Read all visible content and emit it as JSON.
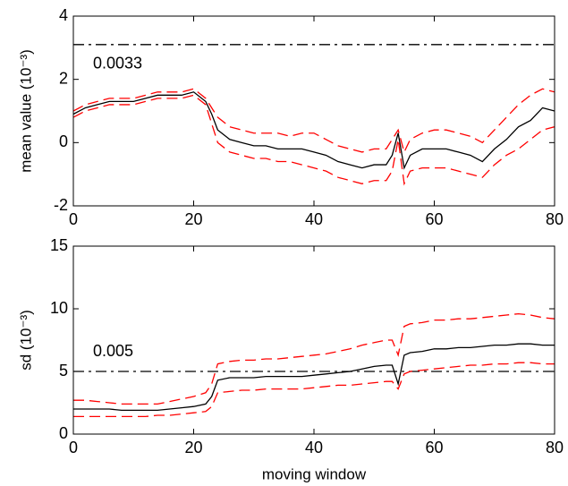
{
  "chart_data": [
    {
      "type": "line",
      "ylabel": "mean value (10⁻³)",
      "annotation": "0.0033",
      "hline": 3.1,
      "x": [
        0,
        2,
        4,
        6,
        8,
        10,
        12,
        14,
        16,
        18,
        20,
        22,
        23,
        24,
        26,
        28,
        30,
        32,
        34,
        36,
        38,
        40,
        42,
        44,
        46,
        48,
        50,
        52,
        53,
        54,
        55,
        56,
        58,
        60,
        62,
        64,
        66,
        68,
        70,
        72,
        74,
        76,
        78,
        80
      ],
      "series": [
        {
          "color": "#ff0000",
          "dash": "dashed",
          "values": [
            1.0,
            1.2,
            1.3,
            1.4,
            1.4,
            1.4,
            1.5,
            1.6,
            1.6,
            1.6,
            1.7,
            1.4,
            1.1,
            0.8,
            0.5,
            0.4,
            0.3,
            0.3,
            0.3,
            0.2,
            0.3,
            0.3,
            0.1,
            -0.1,
            -0.2,
            -0.3,
            -0.2,
            -0.2,
            0.1,
            0.4,
            -0.3,
            0.1,
            0.3,
            0.4,
            0.4,
            0.3,
            0.2,
            0,
            0.4,
            0.8,
            1.2,
            1.5,
            1.7,
            1.6
          ]
        },
        {
          "color": "#ff0000",
          "dash": "dashed",
          "values": [
            0.8,
            1.0,
            1.1,
            1.2,
            1.2,
            1.2,
            1.3,
            1.4,
            1.4,
            1.4,
            1.5,
            1.2,
            0.6,
            0.0,
            -0.3,
            -0.4,
            -0.5,
            -0.5,
            -0.6,
            -0.6,
            -0.7,
            -0.8,
            -0.9,
            -1.1,
            -1.2,
            -1.3,
            -1.2,
            -1.2,
            -0.9,
            0.1,
            -1.3,
            -0.9,
            -0.8,
            -0.8,
            -0.8,
            -0.9,
            -1.0,
            -1.1,
            -0.7,
            -0.4,
            -0.2,
            0.1,
            0.4,
            0.5
          ]
        },
        {
          "color": "#000000",
          "dash": "solid",
          "values": [
            0.9,
            1.1,
            1.2,
            1.3,
            1.3,
            1.3,
            1.4,
            1.5,
            1.5,
            1.5,
            1.6,
            1.3,
            0.9,
            0.4,
            0.1,
            0,
            -0.1,
            -0.1,
            -0.2,
            -0.2,
            -0.2,
            -0.3,
            -0.4,
            -0.6,
            -0.7,
            -0.8,
            -0.7,
            -0.7,
            -0.4,
            0.3,
            -0.8,
            -0.4,
            -0.2,
            -0.2,
            -0.2,
            -0.3,
            -0.4,
            -0.6,
            -0.2,
            0.1,
            0.5,
            0.7,
            1.1,
            1.0
          ]
        }
      ],
      "xlim": [
        0,
        80
      ],
      "xticks": [
        0,
        20,
        40,
        60,
        80
      ],
      "ylim": [
        -2,
        4
      ],
      "yticks": [
        -2,
        0,
        2,
        4
      ]
    },
    {
      "type": "line",
      "ylabel": "sd (10⁻³)",
      "xlabel": "moving window",
      "annotation": "0.005",
      "hline": 5,
      "x": [
        0,
        2,
        4,
        6,
        8,
        10,
        12,
        14,
        16,
        18,
        20,
        22,
        23,
        24,
        26,
        28,
        30,
        32,
        34,
        36,
        38,
        40,
        42,
        44,
        46,
        48,
        50,
        52,
        53,
        54,
        55,
        56,
        58,
        60,
        62,
        64,
        66,
        68,
        70,
        72,
        74,
        76,
        78,
        80
      ],
      "series": [
        {
          "color": "#ff0000",
          "dash": "dashed",
          "values": [
            2.7,
            2.7,
            2.6,
            2.5,
            2.4,
            2.4,
            2.4,
            2.4,
            2.6,
            2.8,
            3.0,
            3.3,
            4.0,
            5.6,
            5.8,
            5.9,
            5.9,
            6.0,
            6.0,
            6.1,
            6.2,
            6.3,
            6.4,
            6.6,
            6.8,
            7.1,
            7.3,
            7.5,
            7.5,
            6.3,
            8.6,
            8.8,
            8.9,
            9.1,
            9.1,
            9.2,
            9.2,
            9.3,
            9.4,
            9.5,
            9.6,
            9.5,
            9.3,
            9.2
          ]
        },
        {
          "color": "#ff0000",
          "dash": "dashed",
          "values": [
            1.4,
            1.4,
            1.4,
            1.4,
            1.4,
            1.4,
            1.4,
            1.5,
            1.5,
            1.6,
            1.7,
            1.8,
            2.2,
            3.3,
            3.4,
            3.5,
            3.5,
            3.6,
            3.6,
            3.6,
            3.6,
            3.7,
            3.8,
            3.9,
            3.9,
            4.0,
            4.1,
            4.2,
            4.2,
            3.6,
            4.8,
            5.0,
            5.1,
            5.2,
            5.3,
            5.4,
            5.5,
            5.5,
            5.6,
            5.6,
            5.7,
            5.7,
            5.6,
            5.6
          ]
        },
        {
          "color": "#000000",
          "dash": "solid",
          "values": [
            2.0,
            2.0,
            2.0,
            2.0,
            1.9,
            1.9,
            1.9,
            1.9,
            2.0,
            2.1,
            2.2,
            2.4,
            3.0,
            4.3,
            4.5,
            4.5,
            4.5,
            4.6,
            4.6,
            4.6,
            4.6,
            4.7,
            4.8,
            4.9,
            5.0,
            5.2,
            5.4,
            5.5,
            5.5,
            4.0,
            6.3,
            6.5,
            6.6,
            6.8,
            6.8,
            6.9,
            6.9,
            7.0,
            7.1,
            7.1,
            7.2,
            7.2,
            7.1,
            7.1
          ]
        }
      ],
      "xlim": [
        0,
        80
      ],
      "xticks": [
        0,
        20,
        40,
        60,
        80
      ],
      "ylim": [
        0,
        15
      ],
      "yticks": [
        0,
        5,
        10,
        15
      ]
    }
  ]
}
